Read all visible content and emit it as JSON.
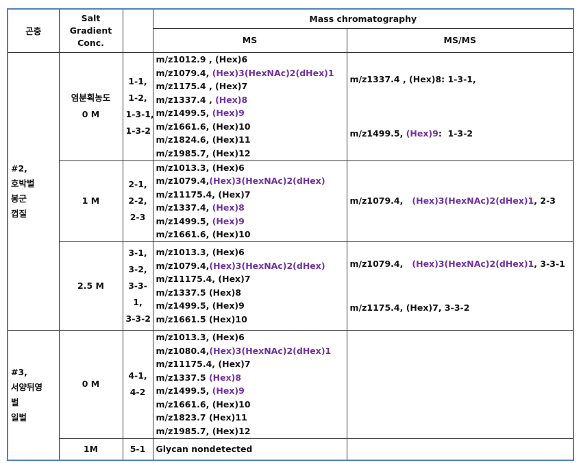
{
  "header": {
    "insect": "곤충",
    "salt": [
      "Salt",
      "Gradient",
      "Conc."
    ],
    "mass": "Mass chromatography",
    "ms": "MS",
    "msms": "MS/MS"
  },
  "groups": [
    {
      "insect": [
        "#2,",
        "호박벌",
        "봉군",
        "껍질"
      ],
      "rows": [
        {
          "conc": [
            "염분획농도",
            "0 M"
          ],
          "ids": [
            "1-1,",
            "1-2,",
            "1-3-1,",
            "1-3-2"
          ],
          "ms": [
            [
              "m/z1012.9 , (Hex)6"
            ],
            [
              "m/z1079.4, ",
              {
                "text": "(Hex)3(HexNAc)2(dHex)1",
                "color": "#7030a0"
              }
            ],
            [
              "m/z1175.4 , (Hex)7"
            ],
            [
              "m/z1337.4 , ",
              {
                "text": "(Hex)8",
                "color": "#7030a0"
              }
            ],
            [
              "m/z1499.5, ",
              {
                "text": "(Hex)9",
                "color": "#7030a0"
              }
            ],
            [
              "m/z1661.6, (Hex)10"
            ],
            [
              "m/z1824.6, (Hex)11"
            ],
            [
              "m/z1985.7, (Hex)12"
            ]
          ],
          "msms": [
            [
              "m/z1337.4 , (Hex)8: 1-3-1,"
            ],
            [
              "m/z1499.5, ",
              {
                "text": "(Hex)9",
                "color": "#7030a0"
              },
              ":  1-3-2"
            ]
          ]
        },
        {
          "conc": [
            "1 M"
          ],
          "ids": [
            "2-1,",
            "2-2,",
            "2-3"
          ],
          "ms": [
            [
              "m/z1013.3, (Hex)6"
            ],
            [
              "m/z1079.4,",
              {
                "text": "(Hex)3(HexNAc)2(dHex)",
                "color": "#7030a0"
              }
            ],
            [
              "m/z11175.4, (Hex)7"
            ],
            [
              "m/z1337.4, ",
              {
                "text": "(Hex)8",
                "color": "#7030a0"
              }
            ],
            [
              "m/z1499.5, ",
              {
                "text": "(Hex)9",
                "color": "#7030a0"
              }
            ],
            [
              "m/z1661.6, (Hex)10"
            ]
          ],
          "msms": [
            [
              "m/z1079.4,   ",
              {
                "text": "(Hex)3(HexNAc)2(dHex)1",
                "color": "#7030a0"
              },
              ", 2-3"
            ]
          ]
        },
        {
          "conc": [
            "2.5 M"
          ],
          "ids": [
            "3-1,",
            "3-2,",
            "3-3-",
            "1,",
            "3-3-2"
          ],
          "ms": [
            [
              "m/z1013.3, (Hex)6"
            ],
            [
              "m/z1079.4,",
              {
                "text": "(Hex)3(HexNAc)2(dHex)",
                "color": "#7030a0"
              }
            ],
            [
              "m/z11175.4, (Hex)7"
            ],
            [
              "m/z1337.5 (Hex)8"
            ],
            [
              "m/z1499.5, (Hex)9"
            ],
            [
              "m/z1661.5 (Hex)10"
            ]
          ],
          "msms": [
            [
              "m/z1079.4,   ",
              {
                "text": "(Hex)3(HexNAc)2(dHex)1",
                "color": "#7030a0"
              },
              ", 3-3-1"
            ],
            [
              "m/z1175.4, (Hex)7, 3-3-2"
            ]
          ]
        }
      ]
    },
    {
      "insect": [
        "#3,",
        "서양뒤영",
        "벌",
        "일벌"
      ],
      "rows": [
        {
          "conc": [
            "0 M"
          ],
          "ids": [
            "4-1,",
            "4-2"
          ],
          "ms": [
            [
              "m/z1013.3, (Hex)6"
            ],
            [
              "m/z1080.4,",
              {
                "text": "(Hex)3(HexNAc)2(dHex)1",
                "color": "#7030a0"
              }
            ],
            [
              "m/z11175.4, (Hex)7"
            ],
            [
              "m/z1337.5 ",
              {
                "text": "(Hex)8",
                "color": "#7030a0"
              }
            ],
            [
              "m/z1499.5, ",
              {
                "text": "(Hex)9",
                "color": "#7030a0"
              }
            ],
            [
              "m/z1661.6, (Hex)10"
            ],
            [
              "m/z1823.7 (Hex)11"
            ],
            [
              "m/z1985.7, (Hex)12"
            ]
          ],
          "msms": []
        },
        {
          "conc": [
            "1M"
          ],
          "ids": [
            "5-1"
          ],
          "ms": [
            [
              "Glycan nondetected"
            ]
          ],
          "msms": []
        }
      ]
    }
  ]
}
